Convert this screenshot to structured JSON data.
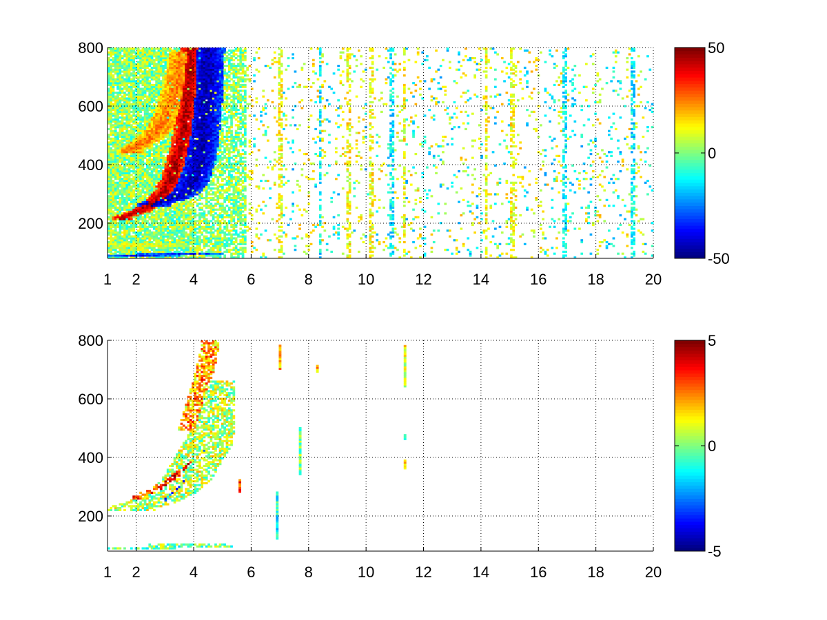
{
  "chart_data": [
    {
      "type": "heatmap",
      "title": "",
      "xlabel": "",
      "ylabel": "",
      "xlim": [
        1,
        20
      ],
      "ylim": [
        80,
        800
      ],
      "xticks": [
        1,
        2,
        4,
        6,
        8,
        10,
        12,
        14,
        16,
        18,
        20
      ],
      "yticks": [
        200,
        400,
        600,
        800
      ],
      "grid": true,
      "colormap": "jet",
      "clim": [
        -50,
        50
      ],
      "colorbar_ticks": [
        -50,
        0,
        50
      ],
      "colorbar_tick_labels": [
        "-50",
        "0",
        "50"
      ],
      "features": [
        {
          "x": [
            1.5,
            2.1,
            2.6,
            3.0,
            3.3,
            3.6,
            3.8,
            3.9
          ],
          "y": [
            220,
            240,
            270,
            310,
            380,
            480,
            620,
            800
          ],
          "value": 45,
          "width": 0.22
        },
        {
          "x": [
            2.6,
            3.1,
            3.6,
            3.95,
            4.15,
            4.3,
            4.45,
            4.5
          ],
          "y": [
            270,
            280,
            300,
            340,
            400,
            480,
            650,
            800
          ],
          "value": -45,
          "width": 0.35
        },
        {
          "x": [
            1.8,
            2.3,
            2.8,
            3.1,
            3.4,
            3.6
          ],
          "y": [
            450,
            480,
            520,
            580,
            660,
            780
          ],
          "value": 25,
          "width": 0.28
        },
        {
          "x": [
            2.0,
            2.8,
            3.5
          ],
          "y": [
            95,
            92,
            90
          ],
          "value": -35,
          "width": 0.9
        },
        {
          "x": [
            2.0,
            3.0,
            4.2
          ],
          "y": [
            130,
            125,
            120
          ],
          "value": 10,
          "width": 1.0
        }
      ],
      "column_stripes_x": [
        7.0,
        8.4,
        9.4,
        10.2,
        10.9,
        11.35,
        14.2,
        15.1,
        16.9,
        19.3
      ]
    },
    {
      "type": "heatmap",
      "title": "",
      "xlabel": "",
      "ylabel": "",
      "xlim": [
        1,
        20
      ],
      "ylim": [
        80,
        800
      ],
      "xticks": [
        1,
        2,
        4,
        6,
        8,
        10,
        12,
        14,
        16,
        18,
        20
      ],
      "yticks": [
        200,
        400,
        600,
        800
      ],
      "grid": true,
      "colormap": "jet",
      "clim": [
        -5,
        5
      ],
      "colorbar_ticks": [
        -5,
        0,
        5
      ],
      "colorbar_tick_labels": [
        "-5",
        "0",
        "5"
      ],
      "features": [
        {
          "x": [
            1.9,
            2.6,
            3.2,
            3.7,
            4.1,
            4.5,
            4.9,
            5.2
          ],
          "y": [
            230,
            250,
            280,
            320,
            380,
            450,
            550,
            650
          ],
          "value": 0.5,
          "width": 0.6
        },
        {
          "x": [
            2.1,
            2.7,
            3.3,
            3.9
          ],
          "y": [
            270,
            290,
            330,
            380
          ],
          "value": 3.5,
          "width": 0.18
        },
        {
          "x": [
            3.0,
            3.5,
            4.0,
            4.4
          ],
          "y": [
            260,
            300,
            360,
            430
          ],
          "value": -2.5,
          "width": 0.15
        },
        {
          "x": [
            3.8,
            4.1,
            4.4,
            4.6
          ],
          "y": [
            500,
            600,
            700,
            800
          ],
          "value": 2.5,
          "width": 0.22
        },
        {
          "x": [
            1.9,
            2.5,
            3.2,
            3.9
          ],
          "y": [
            95,
            95,
            95,
            95
          ],
          "value": 0,
          "width": 1.0
        }
      ],
      "isolated_columns": [
        {
          "x": 5.6,
          "y": [
            280,
            320
          ],
          "value": 3
        },
        {
          "x": 6.9,
          "y": [
            120,
            280
          ],
          "value": -1
        },
        {
          "x": 7.0,
          "y": [
            700,
            780
          ],
          "value": 2
        },
        {
          "x": 7.7,
          "y": [
            340,
            500
          ],
          "value": 0
        },
        {
          "x": 8.3,
          "y": [
            690,
            710
          ],
          "value": 2
        },
        {
          "x": 11.35,
          "y": [
            360,
            390
          ],
          "value": 2
        },
        {
          "x": 11.35,
          "y": [
            460,
            475
          ],
          "value": -0.5
        },
        {
          "x": 11.35,
          "y": [
            640,
            780
          ],
          "value": 1
        }
      ]
    }
  ]
}
